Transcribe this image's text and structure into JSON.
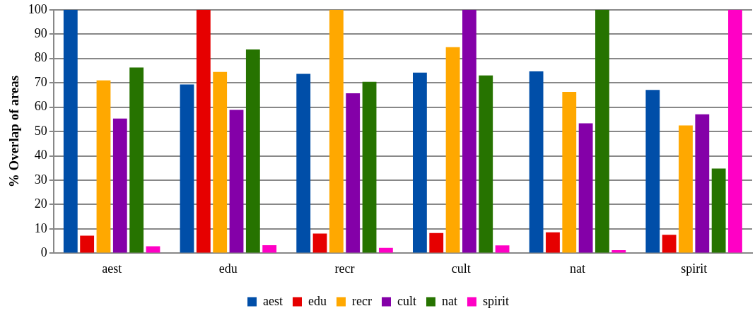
{
  "chart_data": {
    "type": "bar",
    "ylabel": "% Overlap of areas",
    "categories": [
      "aest",
      "edu",
      "recr",
      "cult",
      "nat",
      "spirit"
    ],
    "series": [
      {
        "name": "aest",
        "color": "#004ea8",
        "values": [
          100,
          69.3,
          73.7,
          74.2,
          74.7,
          67.1
        ]
      },
      {
        "name": "edu",
        "color": "#e60000",
        "values": [
          7.2,
          100,
          8.1,
          8.3,
          8.6,
          7.6
        ]
      },
      {
        "name": "recr",
        "color": "#ffa800",
        "values": [
          71,
          74.5,
          100,
          84.6,
          66.3,
          52.5
        ]
      },
      {
        "name": "cult",
        "color": "#8400a8",
        "values": [
          55.3,
          58.9,
          65.7,
          100,
          53.4,
          57.1
        ]
      },
      {
        "name": "nat",
        "color": "#267300",
        "values": [
          76.3,
          83.7,
          70.4,
          73,
          100,
          34.8
        ]
      },
      {
        "name": "spirit",
        "color": "#ff00c5",
        "values": [
          2.9,
          3.3,
          2.2,
          3.2,
          1.3,
          100
        ]
      }
    ],
    "ylim": [
      0,
      100
    ],
    "yticks": [
      0,
      10,
      20,
      30,
      40,
      50,
      60,
      70,
      80,
      90,
      100
    ],
    "grid": "y",
    "legend": "bottom"
  }
}
